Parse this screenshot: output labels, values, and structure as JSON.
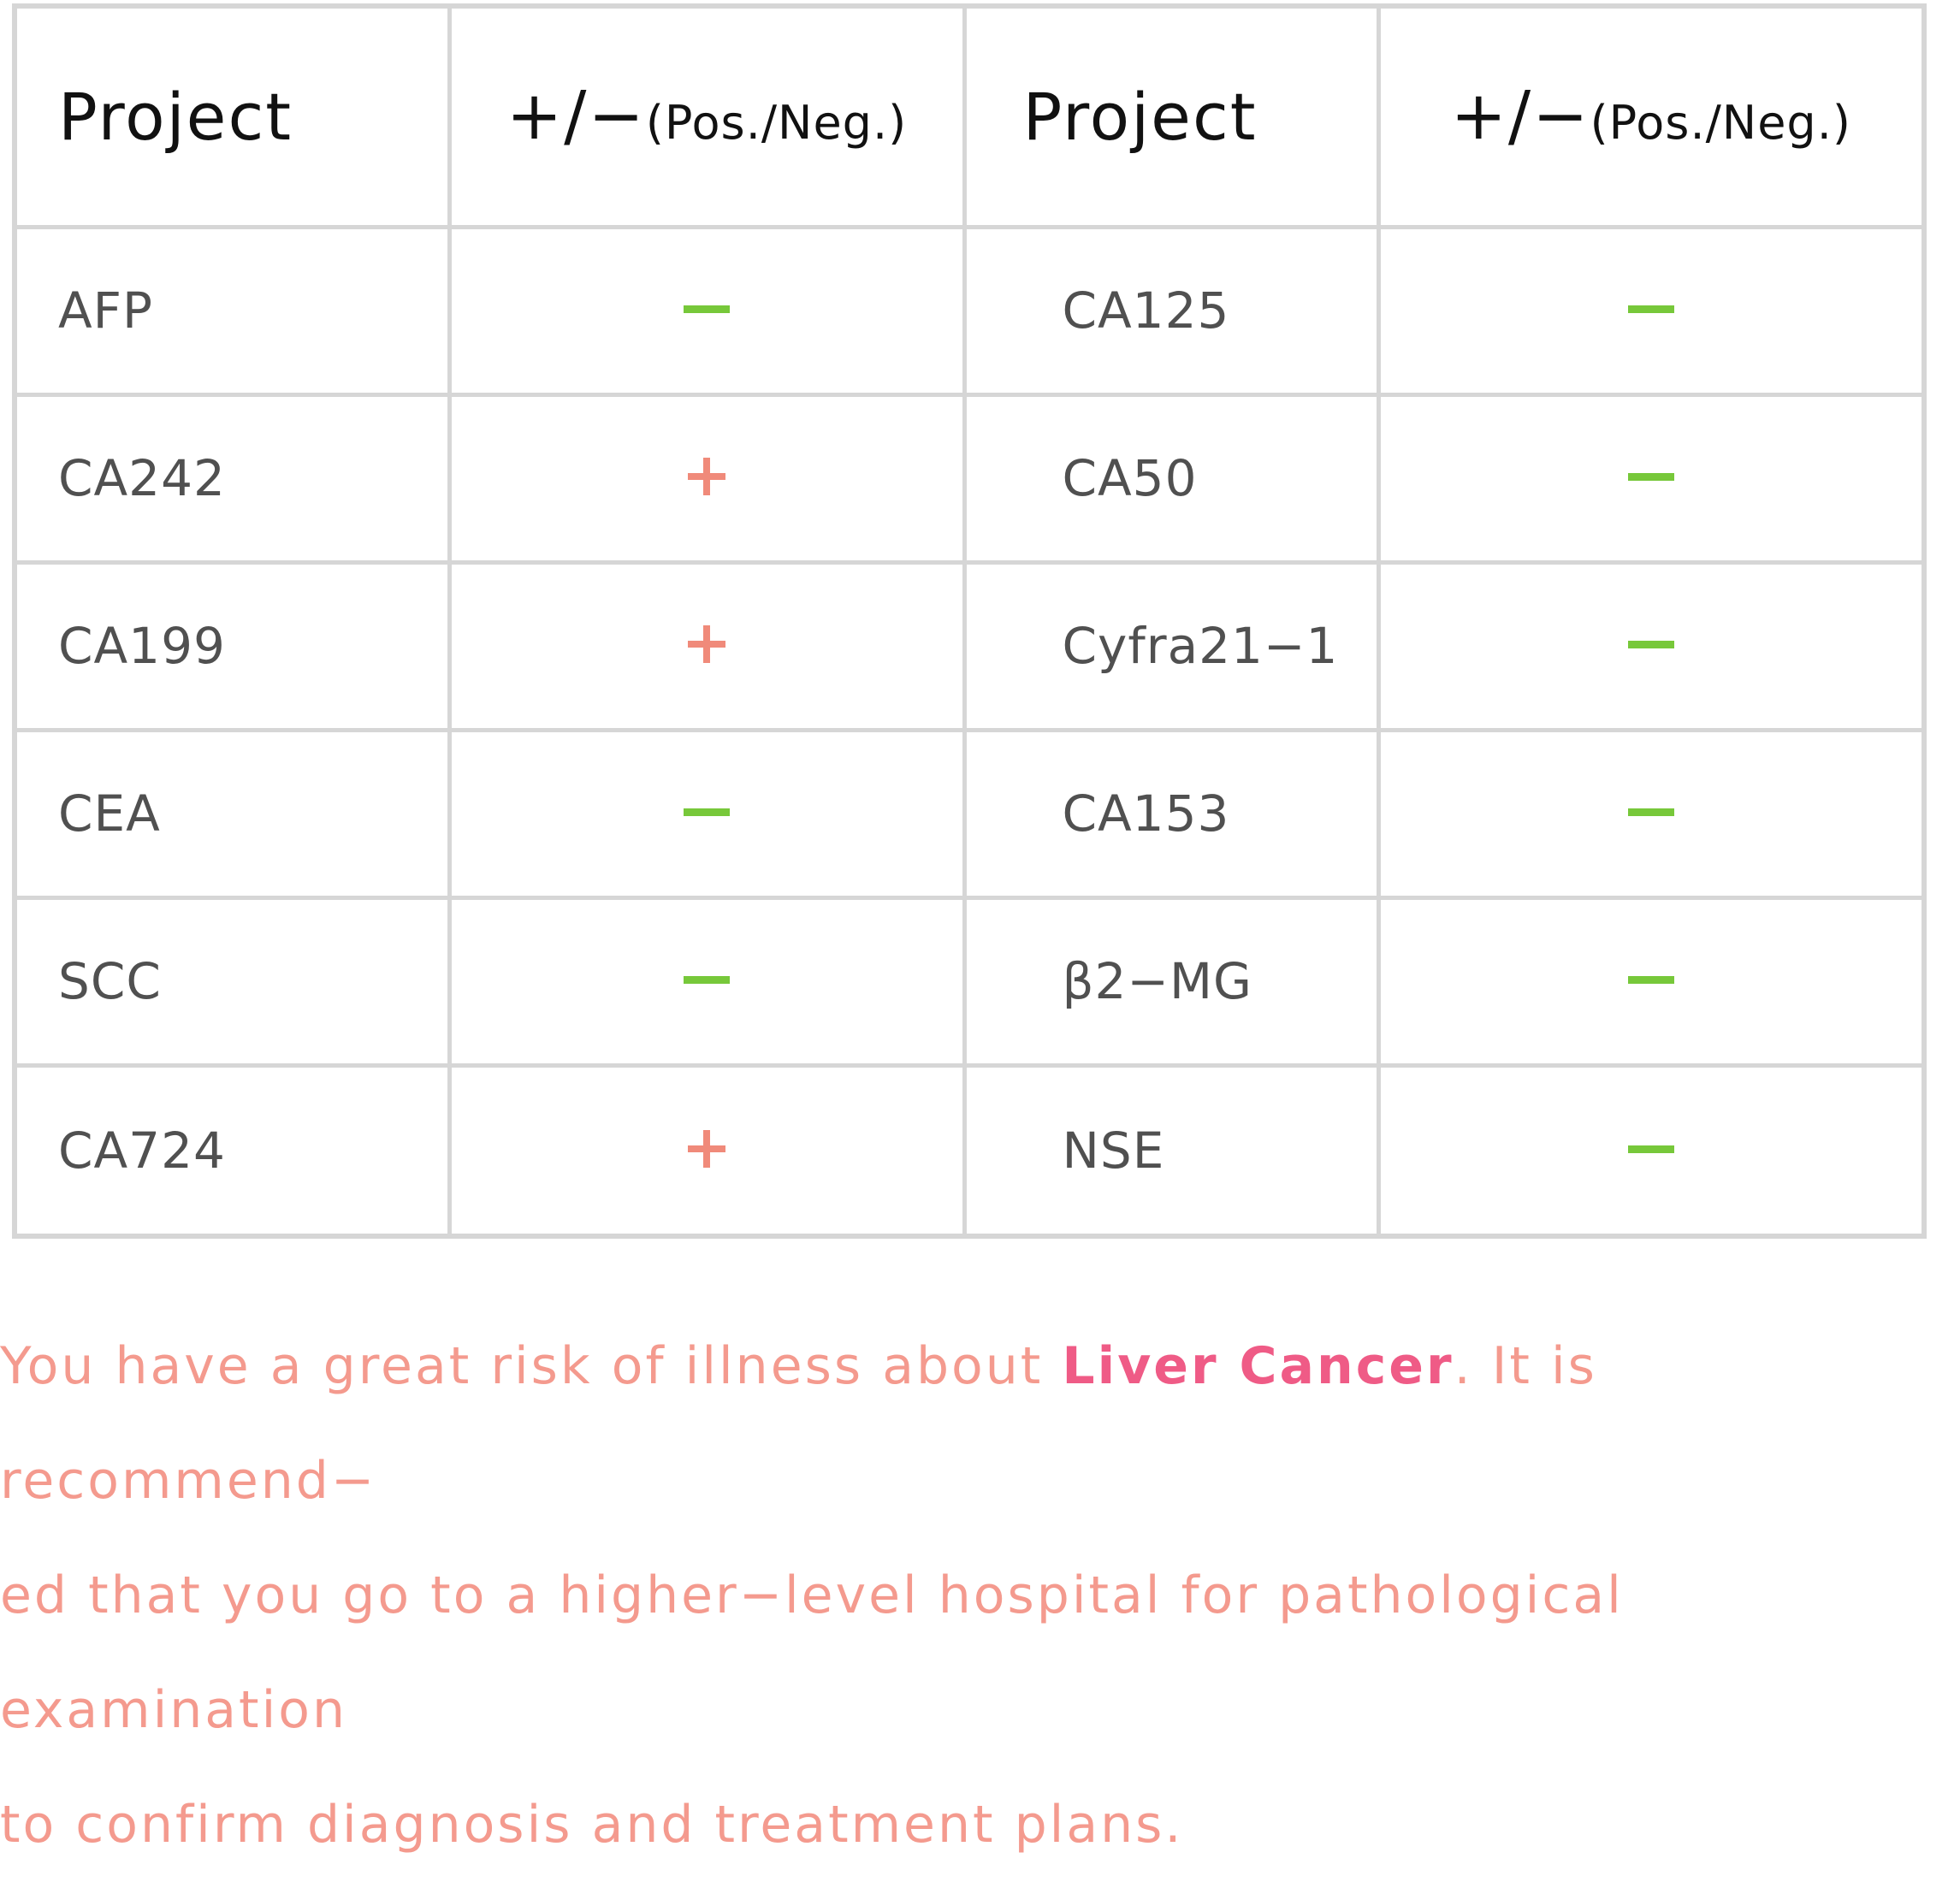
{
  "header": {
    "project_label": "Project",
    "sign_symbol": "+/−",
    "sign_sub": "(Pos./Neg.)"
  },
  "rows": [
    {
      "left": {
        "name": "AFP",
        "result": "negative"
      },
      "right": {
        "name": "CA125",
        "result": "negative"
      }
    },
    {
      "left": {
        "name": "CA242",
        "result": "positive"
      },
      "right": {
        "name": "CA50",
        "result": "negative"
      }
    },
    {
      "left": {
        "name": "CA199",
        "result": "positive"
      },
      "right": {
        "name": "Cyfra21−1",
        "result": "negative"
      }
    },
    {
      "left": {
        "name": "CEA",
        "result": "negative"
      },
      "right": {
        "name": "CA153",
        "result": "negative"
      }
    },
    {
      "left": {
        "name": "SCC",
        "result": "negative"
      },
      "right": {
        "name": "β2−MG",
        "result": "negative"
      }
    },
    {
      "left": {
        "name": "CA724",
        "result": "positive"
      },
      "right": {
        "name": "NSE",
        "result": "negative"
      }
    }
  ],
  "notice": {
    "part1": "You have a great risk of illness about ",
    "highlight": "Liver Cancer",
    "line1_rest": ". It is recommend−",
    "line2": "ed that you go to a higher−level hospital for pathological examination",
    "line3": "to confirm diagnosis and treatment plans."
  },
  "colors": {
    "negative": "#77c83a",
    "positive": "#f08a7a",
    "notice_text": "#f49a8e",
    "notice_highlight": "#ef5b86",
    "grid": "#d6d6d6"
  }
}
